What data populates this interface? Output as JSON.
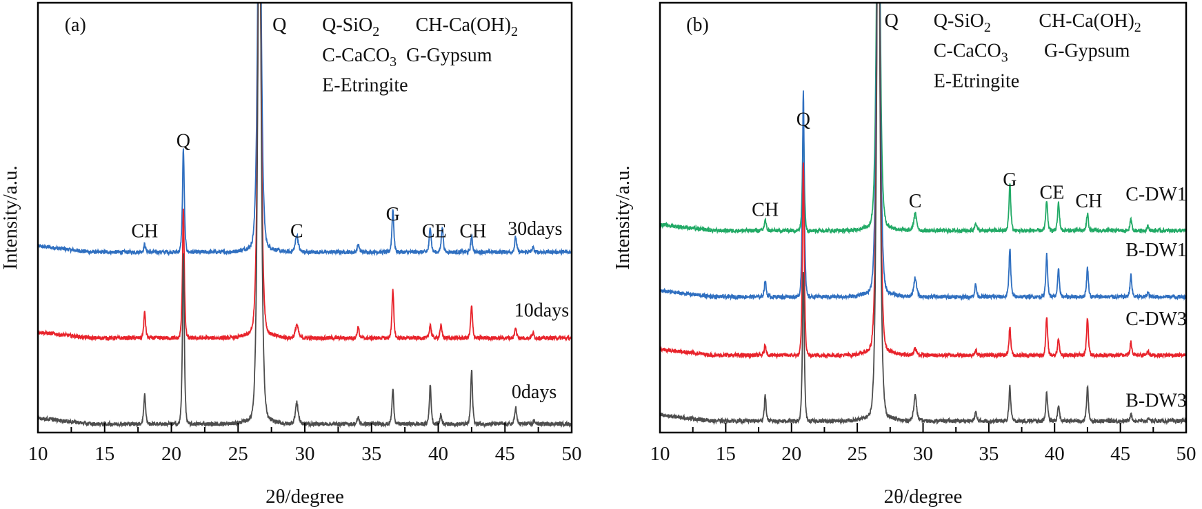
{
  "chart_data": [
    {
      "id": "a",
      "type": "line",
      "panel_label": "(a)",
      "xlabel": "2θ/degree",
      "ylabel": "Intensity/a.u.",
      "xlim": [
        10,
        50
      ],
      "ylim": [
        0,
        100
      ],
      "xticks": [
        "10",
        "15",
        "20",
        "25",
        "30",
        "35",
        "40",
        "45",
        "50"
      ],
      "legend_lines": [
        {
          "text": "Q-SiO",
          "sub": "2",
          "x": 31.3,
          "y": 95
        },
        {
          "text": "CH-Ca(OH)",
          "sub": "2",
          "x": 38.3,
          "y": 95
        },
        {
          "text": "C-CaCO",
          "sub": "3",
          "x": 31.3,
          "y": 88
        },
        {
          "text": "G-Gypsum",
          "sub": "",
          "x": 37.6,
          "y": 88
        },
        {
          "text": "E-Etringite",
          "sub": "",
          "x": 31.3,
          "y": 81
        }
      ],
      "peak_labels": [
        {
          "text": "Q",
          "x": 28.1,
          "y": 95
        },
        {
          "text": "Q",
          "x": 20.9,
          "y": 68
        },
        {
          "text": "CH",
          "x": 18.0,
          "y": 47
        },
        {
          "text": "C",
          "x": 29.4,
          "y": 47
        },
        {
          "text": "G",
          "x": 36.6,
          "y": 51
        },
        {
          "text": "CE",
          "x": 39.7,
          "y": 47
        },
        {
          "text": "CH",
          "x": 42.6,
          "y": 47
        }
      ],
      "series": [
        {
          "name": "30days",
          "color": "#2f6fc0",
          "label_x": 45.2,
          "label_y": 46,
          "baseline": 42,
          "peaks": [
            [
              18.0,
              1.8
            ],
            [
              20.9,
              24
            ],
            [
              26.6,
              110
            ],
            [
              29.4,
              4
            ],
            [
              34.0,
              1.8
            ],
            [
              36.6,
              10
            ],
            [
              39.4,
              6
            ],
            [
              40.3,
              6
            ],
            [
              42.5,
              3.6
            ],
            [
              45.8,
              3.6
            ],
            [
              47.1,
              1
            ]
          ]
        },
        {
          "name": "10days",
          "color": "#e8232b",
          "label_x": 45.7,
          "label_y": 27,
          "baseline": 22,
          "peaks": [
            [
              18.0,
              6
            ],
            [
              20.9,
              30
            ],
            [
              26.6,
              110
            ],
            [
              29.4,
              3.2
            ],
            [
              34.0,
              2.6
            ],
            [
              36.6,
              11
            ],
            [
              39.4,
              3.2
            ],
            [
              40.2,
              3
            ],
            [
              42.5,
              7.5
            ],
            [
              45.8,
              2.3
            ],
            [
              47.1,
              1.2
            ]
          ]
        },
        {
          "name": "0days",
          "color": "#4d4d4d",
          "label_x": 45.5,
          "label_y": 8,
          "baseline": 2,
          "peaks": [
            [
              18.0,
              7
            ],
            [
              20.9,
              40
            ],
            [
              26.6,
              140
            ],
            [
              29.4,
              5
            ],
            [
              34.0,
              1.6
            ],
            [
              36.6,
              8
            ],
            [
              39.4,
              9
            ],
            [
              40.2,
              2.2
            ],
            [
              42.5,
              12.5
            ],
            [
              45.8,
              4
            ],
            [
              47.2,
              0.8
            ]
          ]
        }
      ]
    },
    {
      "id": "b",
      "type": "line",
      "panel_label": "(b)",
      "xlabel": "2θ/degree",
      "ylabel": "Intensity/a.u.",
      "xlim": [
        10,
        50
      ],
      "ylim": [
        0,
        100
      ],
      "xticks": [
        "10",
        "15",
        "20",
        "25",
        "30",
        "35",
        "40",
        "45",
        "50"
      ],
      "legend_lines": [
        {
          "text": "Q-SiO",
          "sub": "2",
          "x": 30.8,
          "y": 96
        },
        {
          "text": "CH-Ca(OH)",
          "sub": "2",
          "x": 38.8,
          "y": 96
        },
        {
          "text": "C-CaCO",
          "sub": "3",
          "x": 30.8,
          "y": 89
        },
        {
          "text": "G-Gypsum",
          "sub": "",
          "x": 39.2,
          "y": 89
        },
        {
          "text": "E-Etringite",
          "sub": "",
          "x": 30.8,
          "y": 82
        }
      ],
      "peak_labels": [
        {
          "text": "Q",
          "x": 27.6,
          "y": 96
        },
        {
          "text": "Q",
          "x": 20.9,
          "y": 73
        },
        {
          "text": "CH",
          "x": 18.0,
          "y": 52
        },
        {
          "text": "C",
          "x": 29.4,
          "y": 54
        },
        {
          "text": "G",
          "x": 36.6,
          "y": 59
        },
        {
          "text": "CE",
          "x": 39.8,
          "y": 56
        },
        {
          "text": "CH",
          "x": 42.6,
          "y": 54
        }
      ],
      "series": [
        {
          "name": "C-DW1",
          "color": "#22aa66",
          "label_x": 45.4,
          "label_y": 54,
          "baseline": 47,
          "peaks": [
            [
              18.0,
              2.5
            ],
            [
              20.9,
              25
            ],
            [
              26.6,
              110
            ],
            [
              29.4,
              4
            ],
            [
              34.0,
              2
            ],
            [
              36.6,
              11
            ],
            [
              39.4,
              7
            ],
            [
              40.3,
              6.6
            ],
            [
              42.5,
              4
            ],
            [
              45.8,
              2.5
            ],
            [
              47.1,
              1
            ]
          ]
        },
        {
          "name": "B-DW1",
          "color": "#2f6fc0",
          "label_x": 45.4,
          "label_y": 41,
          "baseline": 31.6,
          "peaks": [
            [
              18.0,
              3.8
            ],
            [
              20.9,
              48
            ],
            [
              26.6,
              120
            ],
            [
              29.4,
              4.4
            ],
            [
              34.0,
              2.9
            ],
            [
              36.6,
              11.4
            ],
            [
              39.4,
              9.8
            ],
            [
              40.3,
              6.3
            ],
            [
              42.5,
              6.8
            ],
            [
              45.8,
              5
            ],
            [
              47.1,
              0.9
            ]
          ]
        },
        {
          "name": "C-DW3",
          "color": "#e8232b",
          "label_x": 45.4,
          "label_y": 25,
          "baseline": 18,
          "peaks": [
            [
              18.0,
              2.5
            ],
            [
              20.9,
              45
            ],
            [
              26.6,
              120
            ],
            [
              29.4,
              1.6
            ],
            [
              34.0,
              1.3
            ],
            [
              36.6,
              6.5
            ],
            [
              39.4,
              8.8
            ],
            [
              40.3,
              4
            ],
            [
              42.5,
              8.8
            ],
            [
              45.8,
              3
            ],
            [
              47.1,
              1
            ]
          ]
        },
        {
          "name": "B-DW3",
          "color": "#4d4d4d",
          "label_x": 45.4,
          "label_y": 6,
          "baseline": 2.7,
          "peaks": [
            [
              18.0,
              5.9
            ],
            [
              20.9,
              35
            ],
            [
              26.6,
              140
            ],
            [
              29.4,
              5.9
            ],
            [
              34.0,
              2.1
            ],
            [
              36.6,
              8
            ],
            [
              39.4,
              6.8
            ],
            [
              40.3,
              3.6
            ],
            [
              42.5,
              8
            ],
            [
              45.8,
              1.8
            ],
            [
              47.2,
              0.6
            ]
          ]
        }
      ]
    }
  ]
}
